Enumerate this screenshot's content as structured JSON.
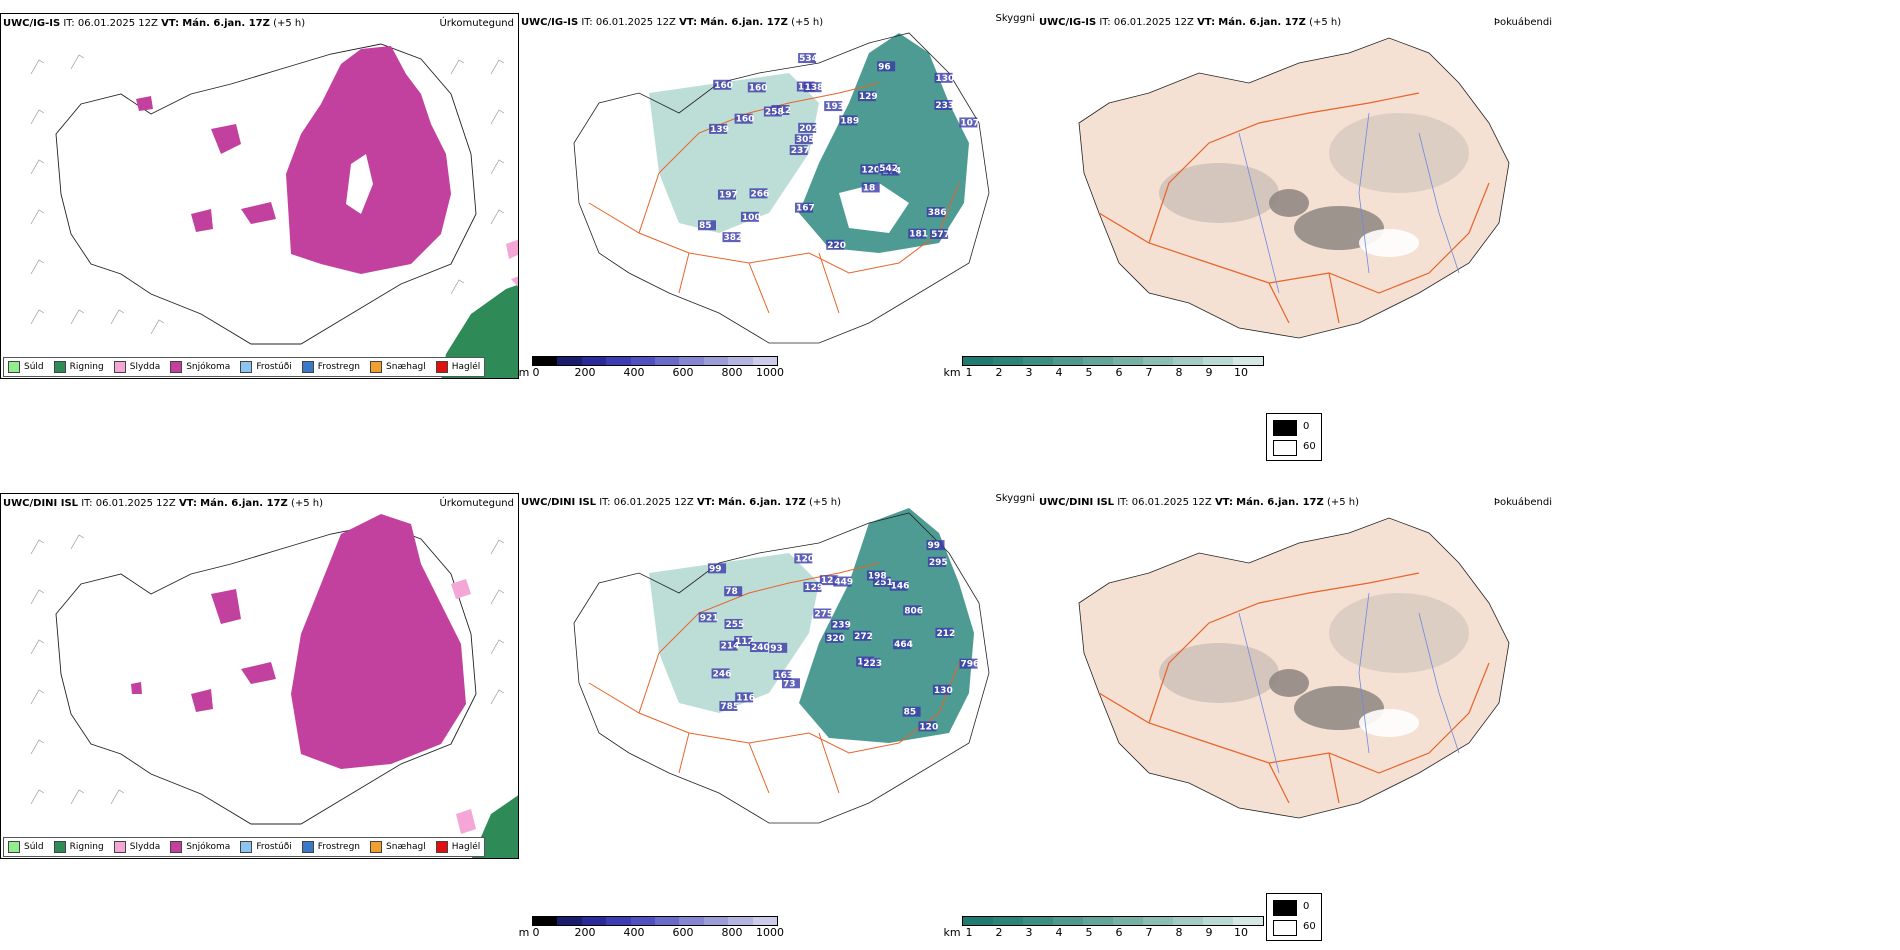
{
  "rows": [
    {
      "model": "UWC/IG-IS",
      "it_label": "IT:",
      "it_value": "06.01.2025 12Z",
      "vt_label": "VT:",
      "vt_value": "Mán. 6.jan. 17Z",
      "lead": "(+5 h)",
      "precip_title": "Úrkomutegund",
      "vis_title": "Skyggni",
      "cloud_title": "Þokuábendi",
      "elev_labels": [
        "577",
        "139",
        "130",
        "237",
        "129",
        "382",
        "123",
        "193",
        "197",
        "112",
        "85",
        "100",
        "138",
        "189",
        "274",
        "160",
        "534",
        "107",
        "120",
        "233",
        "305",
        "167",
        "202",
        "160",
        "96",
        "266",
        "181",
        "386",
        "542",
        "220",
        "258",
        "160",
        "18"
      ]
    },
    {
      "model": "UWC/DINI ISL",
      "it_label": "IT:",
      "it_value": "06.01.2025 12Z",
      "vt_label": "VT:",
      "vt_value": "Mán. 6.jan. 17Z",
      "lead": "(+5 h)",
      "precip_title": "Úrkomutegund",
      "vis_title": "Skyggni",
      "cloud_title": "Þokuábendi",
      "elev_labels": [
        "120",
        "112",
        "138",
        "99",
        "130",
        "78",
        "116",
        "93",
        "146",
        "124",
        "251",
        "85",
        "73",
        "120",
        "272",
        "246",
        "464",
        "239",
        "921",
        "785",
        "99",
        "449",
        "806",
        "796",
        "212",
        "255",
        "240",
        "320",
        "275",
        "295",
        "223",
        "214",
        "163",
        "198",
        "129"
      ]
    }
  ],
  "precip_legend": [
    {
      "label": "Súld",
      "color": "#90ee90"
    },
    {
      "label": "Rigning",
      "color": "#2e8b57"
    },
    {
      "label": "Slydda",
      "color": "#f4a6d7"
    },
    {
      "label": "Snjókoma",
      "color": "#c2409e"
    },
    {
      "label": "Frostúði",
      "color": "#8ec5f0"
    },
    {
      "label": "Frostregn",
      "color": "#3a78c8"
    },
    {
      "label": "Snæhagl",
      "color": "#f0a030"
    },
    {
      "label": "Haglél",
      "color": "#e01010"
    }
  ],
  "elev_bar": {
    "unit": "m",
    "ticks": [
      "0",
      "200",
      "400",
      "600",
      "800",
      "1000"
    ],
    "colors": [
      "#000000",
      "#1c1c6e",
      "#2a2a9a",
      "#3c3cb4",
      "#5050c0",
      "#6a6ac8",
      "#8484d0",
      "#9c9cd8",
      "#b4b4e0",
      "#ccccea"
    ]
  },
  "vis_bar": {
    "unit": "km",
    "ticks": [
      "1",
      "2",
      "3",
      "4",
      "5",
      "6",
      "7",
      "8",
      "9",
      "10"
    ],
    "colors": [
      "#1f7a72",
      "#2c8479",
      "#3a8e82",
      "#4d998d",
      "#61a599",
      "#76b1a6",
      "#8cbeb4",
      "#a3cbc3",
      "#bbd9d3",
      "#d4e8e4"
    ]
  },
  "cloud_legend": {
    "values": [
      "0",
      "60"
    ],
    "colors": [
      "#000000",
      "#ffffff"
    ]
  },
  "colors": {
    "snow": "#c2409e",
    "rain": "#2e8b57",
    "sleet": "#f4a6d7",
    "vis": "#2f8a80",
    "cloudland": "#f5e1d3",
    "roads": "#e8632a",
    "rivers": "#7088e0",
    "elev": "#3a3aa8"
  }
}
